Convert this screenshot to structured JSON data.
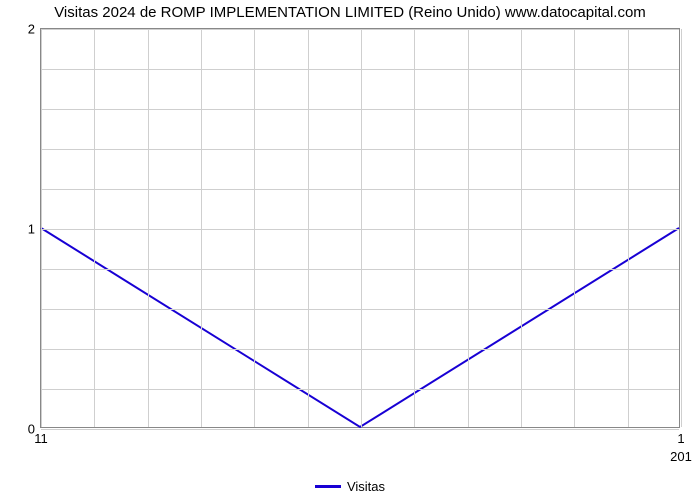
{
  "chart": {
    "type": "line",
    "title": "Visitas 2024 de ROMP IMPLEMENTATION LIMITED (Reino Unido) www.datocapital.com",
    "title_fontsize": 15,
    "title_color": "#000000",
    "background_color": "#ffffff",
    "plot_border_color": "#888888",
    "grid_color": "#cfcfcf",
    "xlim": [
      0,
      1
    ],
    "ylim": [
      0,
      2
    ],
    "y_ticks": [
      0,
      1,
      2
    ],
    "y_minor_ticks": [
      0.2,
      0.4,
      0.6,
      0.8,
      1.2,
      1.4,
      1.6,
      1.8
    ],
    "x_major_positions": [
      0,
      1
    ],
    "x_major_labels": [
      "11",
      "1"
    ],
    "x_sub_label": "201",
    "x_sub_position": 1,
    "x_minor_positions": [
      0.0833,
      0.1667,
      0.25,
      0.3333,
      0.4167,
      0.5,
      0.5833,
      0.6667,
      0.75,
      0.8333,
      0.9167
    ],
    "series": [
      {
        "name": "Visitas",
        "color": "#1800d4",
        "line_width": 2,
        "points_x": [
          0,
          0.5,
          1
        ],
        "points_y": [
          1,
          0,
          1
        ]
      }
    ],
    "legend": {
      "label": "Visitas",
      "swatch_color": "#1800d4",
      "text_color": "#000000",
      "fontsize": 13
    }
  }
}
